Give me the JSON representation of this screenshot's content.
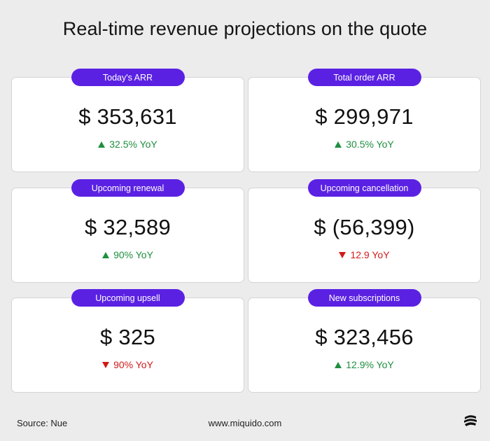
{
  "title": "Real-time revenue projections on the quote",
  "cards": [
    {
      "label": "Today's ARR",
      "value": "$ 353,631",
      "change": "32.5% YoY",
      "direction": "up"
    },
    {
      "label": "Total order ARR",
      "value": "$ 299,971",
      "change": "30.5% YoY",
      "direction": "up"
    },
    {
      "label": "Upcoming renewal",
      "value": "$ 32,589",
      "change": "90% YoY",
      "direction": "up"
    },
    {
      "label": "Upcoming cancellation",
      "value": "$ (56,399)",
      "change": "12.9 YoY",
      "direction": "down"
    },
    {
      "label": "Upcoming upsell",
      "value": "$ 325",
      "change": "90% YoY",
      "direction": "down"
    },
    {
      "label": "New subscriptions",
      "value": "$ 323,456",
      "change": "12.9% YoY",
      "direction": "up"
    }
  ],
  "footer": {
    "source": "Source: Nue",
    "url": "www.miquido.com",
    "logo_icon": "miquido-logo-icon"
  },
  "colors": {
    "accent": "#5b21e3",
    "positive": "#1f8f3f",
    "negative": "#d11a1a",
    "background": "#ececed"
  }
}
